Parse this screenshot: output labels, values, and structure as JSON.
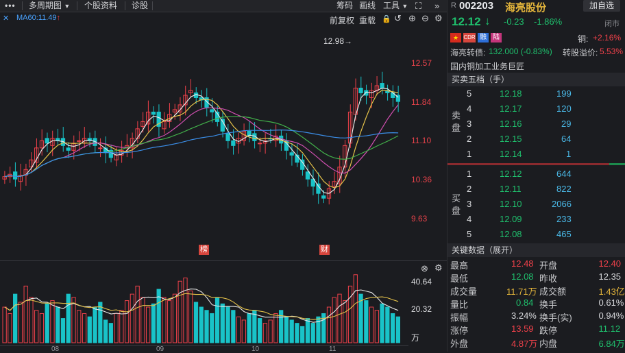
{
  "toolbar": {
    "menu_icon": "more-icon",
    "period_label": "多周期图",
    "period_arrow": "▼",
    "stock_info": "个股资料",
    "diagnose": "诊股",
    "chips": "筹码",
    "draw_line": "画线",
    "tools": "工具",
    "tools_arrow": "▼"
  },
  "chart_header": {
    "ma60": "MA60:11.49",
    "ma60_arrow": "↑",
    "adjust": "前复权",
    "overlay": "重载"
  },
  "price_axis": [
    "12.57",
    "11.84",
    "11.10",
    "10.36",
    "9.63"
  ],
  "high_marker": "12.98→",
  "event_markers": [
    "榜",
    "财"
  ],
  "volume_axis": [
    "40.64",
    "20.32",
    "万"
  ],
  "x_axis": [
    "08",
    "09",
    "10",
    "11"
  ],
  "stock": {
    "prefix": "R",
    "code": "002203",
    "name": "海亮股份",
    "add_btn": "加自选",
    "price": "12.12",
    "price_arrow": "↓",
    "change": "-0.23",
    "change_pct": "-1.86%",
    "status": "闭市",
    "badges": [
      "国",
      "CDR",
      "融",
      "陆"
    ],
    "copper_label": "铜:",
    "copper_value": "+2.16%",
    "bond_label": "海亮转债:",
    "bond_value": "132.000 (-0.83%)",
    "premium_label": "转股溢价:",
    "premium_value": "5.53%",
    "industry": "国内铜加工业务巨匠"
  },
  "order_book": {
    "title": "买卖五档（手）",
    "sell_label": [
      "卖",
      "盘"
    ],
    "buy_label": [
      "买",
      "盘"
    ],
    "sells": [
      {
        "level": "5",
        "price": "12.18",
        "volume": "199"
      },
      {
        "level": "4",
        "price": "12.17",
        "volume": "120"
      },
      {
        "level": "3",
        "price": "12.16",
        "volume": "29"
      },
      {
        "level": "2",
        "price": "12.15",
        "volume": "64"
      },
      {
        "level": "1",
        "price": "12.14",
        "volume": "1"
      }
    ],
    "buys": [
      {
        "level": "1",
        "price": "12.12",
        "volume": "644"
      },
      {
        "level": "2",
        "price": "12.11",
        "volume": "822"
      },
      {
        "level": "3",
        "price": "12.10",
        "volume": "2066"
      },
      {
        "level": "4",
        "price": "12.09",
        "volume": "233"
      },
      {
        "level": "5",
        "price": "12.08",
        "volume": "465"
      }
    ]
  },
  "key_data": {
    "title": "关键数据（展开）",
    "rows": [
      [
        {
          "label": "最高",
          "value": "12.48",
          "color": "#f0414a"
        },
        {
          "label": "开盘",
          "value": "12.40",
          "color": "#f0414a"
        }
      ],
      [
        {
          "label": "最低",
          "value": "12.08",
          "color": "#1fc06d"
        },
        {
          "label": "昨收",
          "value": "12.35",
          "color": "#d8d9dc"
        }
      ],
      [
        {
          "label": "成交量",
          "value": "11.71万",
          "color": "#e4b53b"
        },
        {
          "label": "成交额",
          "value": "1.43亿",
          "color": "#e4b53b"
        }
      ],
      [
        {
          "label": "量比",
          "value": "0.84",
          "color": "#1fc06d"
        },
        {
          "label": "换手",
          "value": "0.61%",
          "color": "#d8d9dc"
        }
      ],
      [
        {
          "label": "振幅",
          "value": "3.24%",
          "color": "#d8d9dc"
        },
        {
          "label": "换手(实)",
          "value": "0.94%",
          "color": "#d8d9dc"
        }
      ],
      [
        {
          "label": "涨停",
          "value": "13.59",
          "color": "#f0414a"
        },
        {
          "label": "跌停",
          "value": "11.12",
          "color": "#1fc06d"
        }
      ],
      [
        {
          "label": "外盘",
          "value": "4.87万",
          "color": "#f0414a"
        },
        {
          "label": "内盘",
          "value": "6.84万",
          "color": "#1fc06d"
        }
      ]
    ]
  },
  "colors": {
    "up": "#f0414a",
    "down": "#1fc06d",
    "ma60": "#4aa3ff"
  }
}
